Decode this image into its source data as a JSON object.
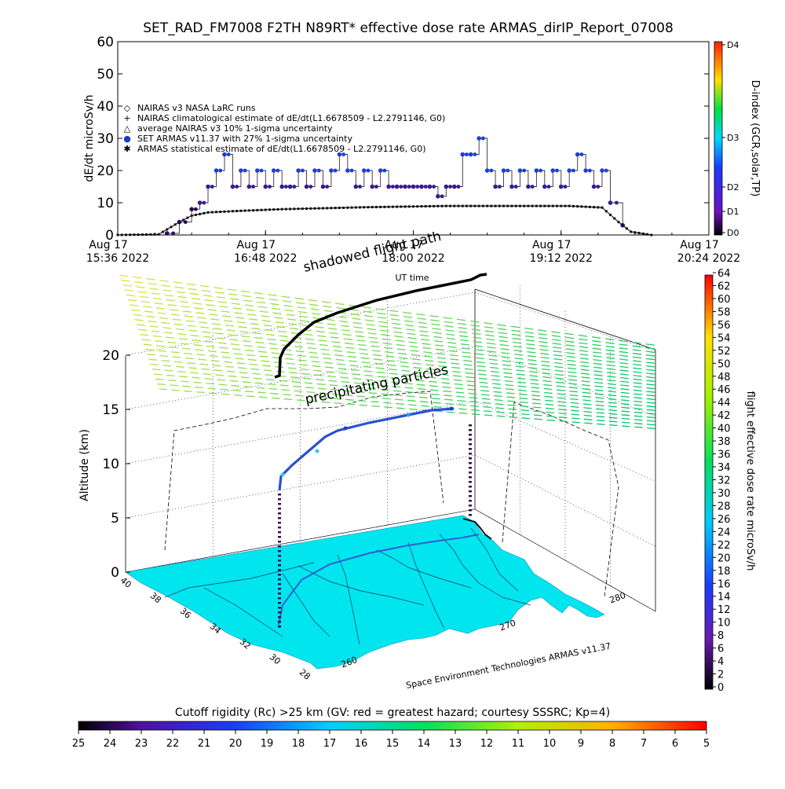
{
  "chart_data": [
    {
      "type": "scatter",
      "title": "SET_RAD_FM7008  F2TH N89RT* effective dose rate ARMAS_dirIP_Report_07008",
      "ylabel": "dE/dt microSv/h",
      "ylim": [
        0,
        60
      ],
      "yticks": [
        "0",
        "10",
        "20",
        "30",
        "40",
        "50",
        "60"
      ],
      "xticks": [
        {
          "date": "Aug 17",
          "time": "15:36 2022"
        },
        {
          "date": "Aug 17",
          "time": "16:48 2022"
        },
        {
          "date": "Aug 17",
          "time": "18:00 2022"
        },
        {
          "date": "Aug 17",
          "time": "19:12 2022"
        },
        {
          "date": "Aug 17",
          "time": "20:24 2022"
        }
      ],
      "xlabel": "UT time",
      "xrange_minutes": [
        0,
        288
      ],
      "legend_position": "upper-left",
      "legend": [
        "NAIRAS v3 NASA LaRC runs",
        "NAIRAS climatological estimate of dE/dt(L1.6678509 - L2.2791146, G0)",
        "average NAIRAS v3 10% 1-sigma uncertainty",
        "SET ARMAS v11.37 with 27% 1-sigma uncertainty",
        "ARMAS statistical estimate of dE/dt(L1.6678509 - L2.2791146, G0)"
      ],
      "series": [
        {
          "name": "SET ARMAS v11.37 with 27% 1-sigma uncertainty",
          "x": [
            24,
            30,
            36,
            40,
            44,
            48,
            52,
            56,
            60,
            64,
            68,
            72,
            76,
            80,
            84,
            88,
            92,
            96,
            100,
            104,
            108,
            112,
            116,
            120,
            124,
            128,
            132,
            136,
            140,
            144,
            148,
            152,
            156,
            160,
            164,
            168,
            172,
            176,
            180,
            184,
            188,
            192,
            196,
            200,
            204,
            208,
            212,
            216,
            220,
            224,
            228,
            232,
            236,
            240,
            246
          ],
          "y": [
            0.5,
            4,
            8,
            10,
            15,
            20,
            25,
            15,
            20,
            15,
            20,
            15,
            20,
            15,
            15,
            20,
            15,
            20,
            15,
            20,
            25,
            20,
            15,
            20,
            15,
            20,
            15,
            15,
            15,
            15,
            15,
            15,
            12,
            15,
            15,
            25,
            25,
            30,
            20,
            15,
            20,
            15,
            20,
            15,
            20,
            15,
            20,
            15,
            20,
            25,
            20,
            15,
            20,
            10,
            3
          ]
        },
        {
          "name": "NAIRAS climatological estimate of dE/dt(L1.6678509 - L2.2791146, G0)",
          "x": [
            0,
            20,
            30,
            36,
            44,
            60,
            80,
            100,
            120,
            140,
            160,
            180,
            200,
            220,
            236,
            244,
            250,
            260
          ],
          "y": [
            0,
            0.2,
            4,
            6,
            7,
            7.5,
            8,
            8.3,
            8.6,
            8.8,
            9,
            9,
            9,
            9,
            8.5,
            4,
            1,
            0
          ]
        }
      ],
      "right_axis": {
        "label": "D-index (GCR,solar,TP)",
        "ticks": [
          "D0",
          "D1",
          "D2",
          "D3",
          "D4"
        ],
        "colors": [
          "#000000",
          "#8a1cc8",
          "#0050ff",
          "#00e8e8",
          "#00e000",
          "#ffff00",
          "#ff8000",
          "#ff0000"
        ]
      }
    },
    {
      "type": "scatter",
      "ylabel": "Altitude (km)",
      "zticks": [
        "0",
        "5",
        "10",
        "15",
        "20"
      ],
      "latitude_ticks": [
        "40",
        "38",
        "36",
        "34",
        "32",
        "30",
        "28"
      ],
      "longitude_ticks": [
        "260",
        "270",
        "280"
      ],
      "annotations": [
        "shadowed flight path",
        "precipitating particles",
        "Space Environment Technologies ARMAS v11.37"
      ],
      "flight_path": {
        "lon": [
          256,
          258,
          261,
          264,
          268,
          270,
          273,
          275,
          277,
          278,
          279
        ],
        "lat": [
          31.5,
          33.5,
          35.0,
          36.5,
          38.0,
          38.8,
          39.4,
          40.0,
          40.4,
          40.6,
          40.5
        ],
        "alt_km": [
          8.6,
          10.5,
          12.4,
          13.2,
          13.6,
          14.0,
          14.4,
          14.6,
          15.0,
          15.1,
          15.2
        ]
      },
      "colorbar": {
        "label": "flight effective dose rate microSv/h",
        "range": [
          0,
          64
        ],
        "ticks": [
          "0",
          "2",
          "4",
          "6",
          "8",
          "10",
          "12",
          "14",
          "16",
          "18",
          "20",
          "22",
          "24",
          "26",
          "28",
          "30",
          "32",
          "34",
          "36",
          "38",
          "40",
          "42",
          "44",
          "46",
          "48",
          "50",
          "52",
          "54",
          "56",
          "58",
          "60",
          "62",
          "64"
        ]
      },
      "bottom_colorbar": {
        "label": "Cutoff rigidity (Rc) >25 km (GV: red = greatest hazard; courtesy SSSRC; Kp=4)",
        "ticks": [
          "25",
          "24",
          "23",
          "22",
          "21",
          "20",
          "19",
          "18",
          "17",
          "16",
          "15",
          "14",
          "13",
          "12",
          "11",
          "10",
          "9",
          "8",
          "7",
          "6",
          "5"
        ]
      }
    }
  ]
}
